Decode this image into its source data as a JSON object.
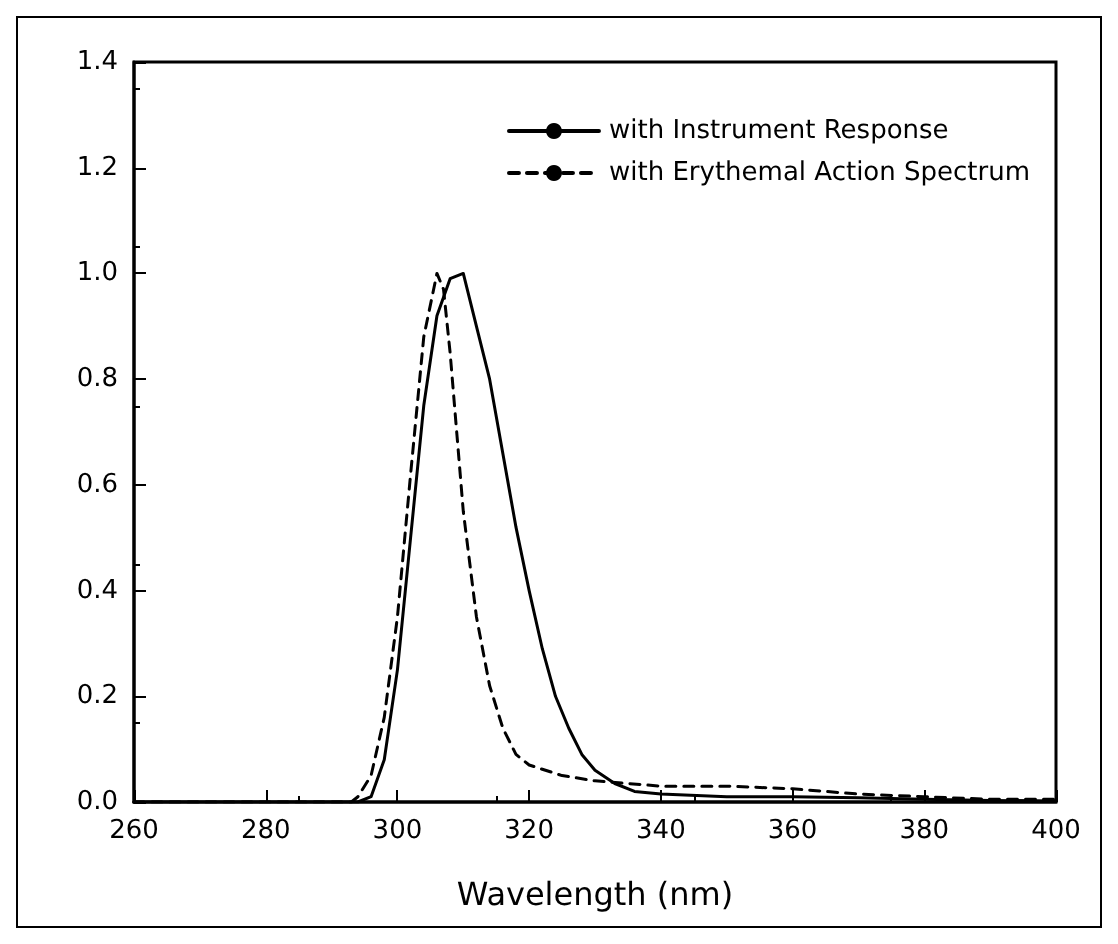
{
  "chart_data": {
    "type": "line",
    "xlabel": "Wavelength (nm)",
    "xlim": [
      260,
      400
    ],
    "xticks": [
      260,
      280,
      300,
      320,
      340,
      360,
      380,
      400
    ],
    "ylim": [
      0,
      1.4
    ],
    "yticks": [
      {
        "value": 0,
        "label": "0.0"
      },
      0.2,
      0.4,
      0.6,
      0.8,
      {
        "value": 1,
        "label": "1.0"
      },
      1.2,
      1.4
    ],
    "grid": false,
    "legend": "top right",
    "marker": "none",
    "series": [
      {
        "name": "with Instrument Response",
        "color": "#000000",
        "line_style": "solid",
        "x": [
          260,
          290,
          294,
          296,
          298,
          300,
          302,
          304,
          306,
          308,
          310,
          312,
          314,
          316,
          318,
          320,
          322,
          324,
          326,
          328,
          330,
          333,
          336,
          340,
          350,
          360,
          370,
          380,
          390,
          400
        ],
        "values": [
          0,
          0,
          0,
          0.01,
          0.08,
          0.25,
          0.5,
          0.75,
          0.92,
          0.99,
          1.0,
          0.9,
          0.8,
          0.66,
          0.52,
          0.4,
          0.29,
          0.2,
          0.14,
          0.09,
          0.06,
          0.035,
          0.02,
          0.015,
          0.01,
          0.01,
          0.008,
          0.005,
          0.003,
          0.002
        ]
      },
      {
        "name": "with Erythemal Action Spectrum",
        "color": "#000000",
        "line_style": "dashed",
        "x": [
          260,
          290,
          293,
          294,
          296,
          298,
          300,
          302,
          304,
          306,
          307,
          308,
          310,
          312,
          314,
          316,
          318,
          320,
          325,
          330,
          340,
          350,
          360,
          370,
          380,
          390,
          400
        ],
        "values": [
          0,
          0,
          0,
          0.01,
          0.05,
          0.16,
          0.35,
          0.62,
          0.88,
          1.0,
          0.97,
          0.85,
          0.55,
          0.35,
          0.22,
          0.14,
          0.09,
          0.07,
          0.05,
          0.04,
          0.03,
          0.03,
          0.025,
          0.015,
          0.01,
          0.005,
          0.005
        ]
      }
    ]
  }
}
